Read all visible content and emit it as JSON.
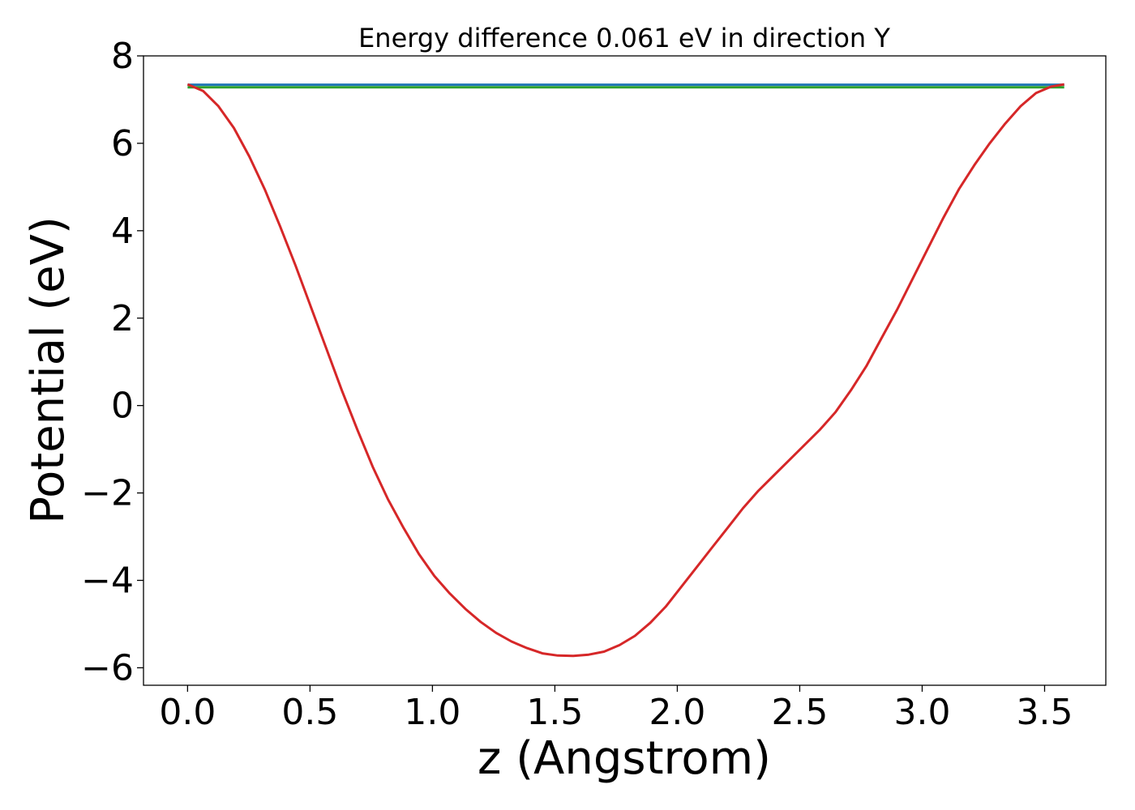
{
  "chart_data": {
    "type": "line",
    "title": "Energy difference 0.061 eV in direction Y",
    "xlabel": "z (Angstrom)",
    "ylabel": "Potential (eV)",
    "xlim": [
      -0.18,
      3.75
    ],
    "ylim": [
      -6.4,
      8.0
    ],
    "xticks": [
      0.0,
      0.5,
      1.0,
      1.5,
      2.0,
      2.5,
      3.0,
      3.5
    ],
    "xtick_labels": [
      "0.0",
      "0.5",
      "1.0",
      "1.5",
      "2.0",
      "2.5",
      "3.0",
      "3.5"
    ],
    "yticks": [
      -6,
      -4,
      -2,
      0,
      2,
      4,
      6,
      8
    ],
    "ytick_labels": [
      "−6",
      "−4",
      "−2",
      "0",
      "2",
      "4",
      "6",
      "8"
    ],
    "grid": false,
    "series": [
      {
        "color": "#1f77b4",
        "x": [
          0.0,
          3.58
        ],
        "y": [
          7.34,
          7.34
        ]
      },
      {
        "color": "#2ca02c",
        "x": [
          0.0,
          3.58
        ],
        "y": [
          7.28,
          7.28
        ]
      },
      {
        "color": "#d62728",
        "x": [
          0.0,
          0.063,
          0.126,
          0.189,
          0.252,
          0.315,
          0.378,
          0.441,
          0.504,
          0.567,
          0.63,
          0.693,
          0.756,
          0.819,
          0.882,
          0.945,
          1.008,
          1.071,
          1.134,
          1.197,
          1.26,
          1.323,
          1.386,
          1.449,
          1.512,
          1.575,
          1.638,
          1.701,
          1.764,
          1.827,
          1.89,
          1.953,
          2.016,
          2.079,
          2.142,
          2.205,
          2.268,
          2.331,
          2.394,
          2.457,
          2.52,
          2.583,
          2.646,
          2.709,
          2.772,
          2.835,
          2.898,
          2.961,
          3.024,
          3.087,
          3.15,
          3.213,
          3.276,
          3.339,
          3.402,
          3.465,
          3.528,
          3.58
        ],
        "y": [
          7.35,
          7.2,
          6.85,
          6.35,
          5.7,
          4.95,
          4.1,
          3.2,
          2.25,
          1.3,
          0.35,
          -0.55,
          -1.4,
          -2.15,
          -2.8,
          -3.4,
          -3.9,
          -4.3,
          -4.65,
          -4.95,
          -5.2,
          -5.4,
          -5.55,
          -5.67,
          -5.72,
          -5.73,
          -5.7,
          -5.63,
          -5.48,
          -5.27,
          -4.97,
          -4.6,
          -4.15,
          -3.7,
          -3.25,
          -2.8,
          -2.35,
          -1.95,
          -1.6,
          -1.25,
          -0.9,
          -0.55,
          -0.15,
          0.35,
          0.9,
          1.55,
          2.2,
          2.9,
          3.6,
          4.3,
          4.95,
          5.5,
          6.0,
          6.45,
          6.85,
          7.15,
          7.3,
          7.35
        ]
      }
    ]
  }
}
